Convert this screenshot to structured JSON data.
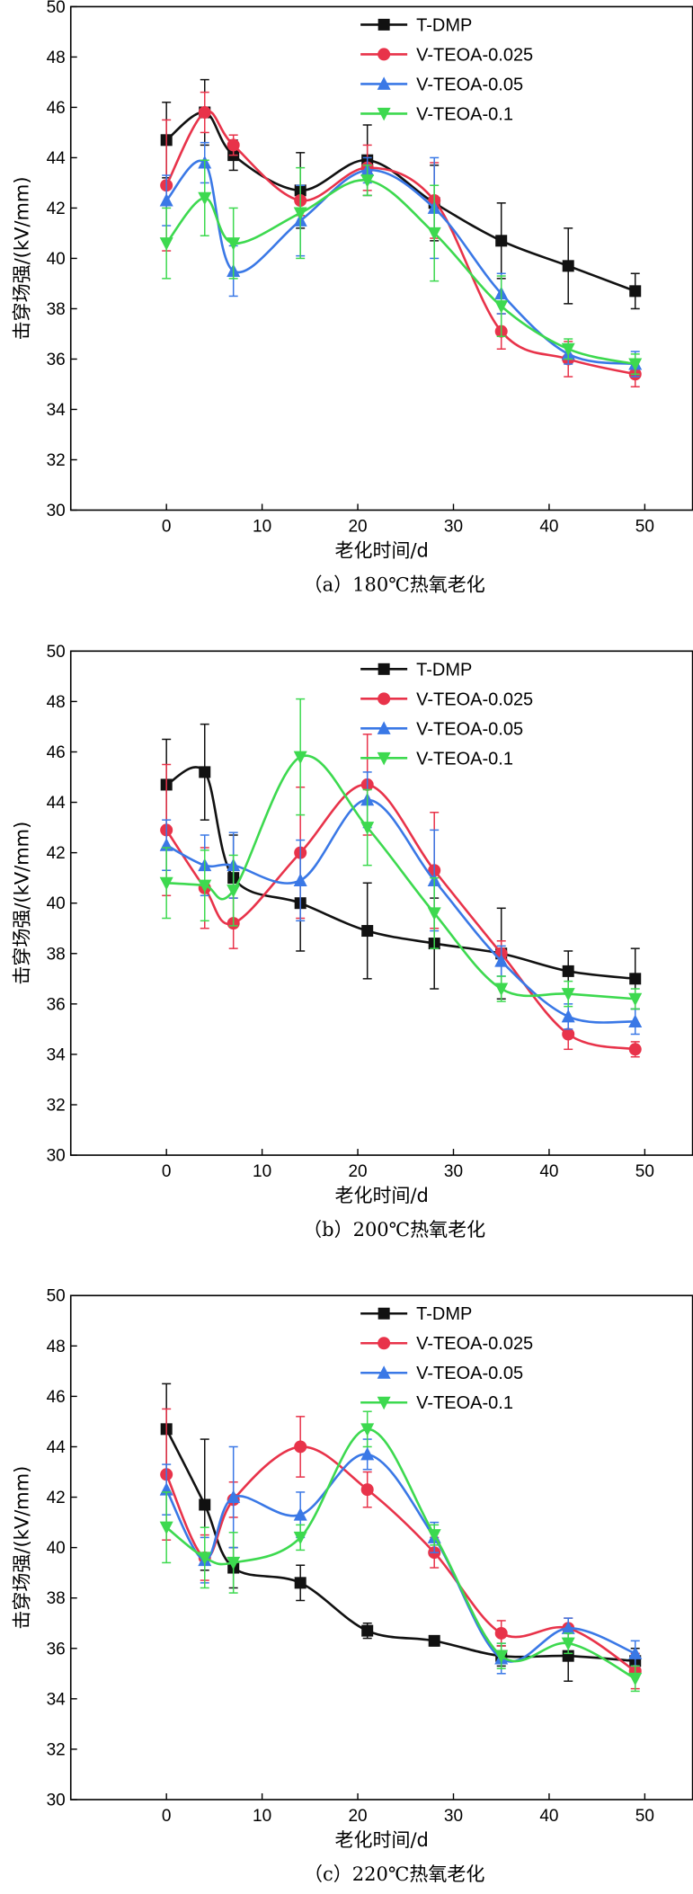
{
  "colors": {
    "T-DMP": "#111111",
    "V-TEOA-0.025": "#e8334a",
    "V-TEOA-0.05": "#3a78e6",
    "V-TEOA-0.1": "#3dd94f"
  },
  "chart_data": [
    {
      "type": "line",
      "caption": "（a）180℃热氧老化",
      "xlabel": "老化时间/d",
      "ylabel": "击穿场强/(kV/mm)",
      "xlim": [
        -10,
        55
      ],
      "ylim": [
        30,
        50
      ],
      "xticks": [
        0,
        10,
        20,
        30,
        40,
        50
      ],
      "yticks": [
        30,
        32,
        34,
        36,
        38,
        40,
        42,
        44,
        46,
        48,
        50
      ],
      "legend_position": "top-right",
      "x": [
        0,
        4,
        7,
        14,
        21,
        28,
        35,
        42,
        49
      ],
      "series": [
        {
          "name": "T-DMP",
          "marker": "square",
          "values": [
            44.7,
            45.8,
            44.1,
            42.7,
            43.9,
            42.2,
            40.7,
            39.7,
            38.7
          ],
          "errors": [
            1.5,
            1.3,
            0.6,
            1.5,
            1.4,
            1.5,
            1.5,
            1.5,
            0.7
          ]
        },
        {
          "name": "V-TEOA-0.025",
          "marker": "circle",
          "values": [
            42.9,
            45.8,
            44.5,
            42.3,
            43.6,
            42.3,
            37.1,
            36.0,
            35.4
          ],
          "errors": [
            2.6,
            0.8,
            0.4,
            0.6,
            0.9,
            1.5,
            0.7,
            0.7,
            0.5
          ]
        },
        {
          "name": "V-TEOA-0.05",
          "marker": "triangle-up",
          "values": [
            42.3,
            43.8,
            39.5,
            41.5,
            43.5,
            42.0,
            38.6,
            36.2,
            35.8
          ],
          "errors": [
            1.0,
            0.8,
            1.0,
            1.4,
            0.5,
            2.0,
            0.8,
            0.4,
            0.5
          ]
        },
        {
          "name": "V-TEOA-0.1",
          "marker": "triangle-down",
          "values": [
            40.6,
            42.4,
            40.6,
            41.8,
            43.1,
            41.0,
            38.1,
            36.4,
            35.8
          ],
          "errors": [
            1.4,
            1.5,
            1.4,
            1.8,
            0.6,
            1.9,
            1.2,
            0.4,
            0.4
          ]
        }
      ]
    },
    {
      "type": "line",
      "caption": "（b）200℃热氧老化",
      "xlabel": "老化时间/d",
      "ylabel": "击穿场强/(kV/mm)",
      "xlim": [
        -10,
        55
      ],
      "ylim": [
        30,
        50
      ],
      "xticks": [
        0,
        10,
        20,
        30,
        40,
        50
      ],
      "yticks": [
        30,
        32,
        34,
        36,
        38,
        40,
        42,
        44,
        46,
        48,
        50
      ],
      "legend_position": "top-right",
      "x": [
        0,
        4,
        7,
        14,
        21,
        28,
        35,
        42,
        49
      ],
      "series": [
        {
          "name": "T-DMP",
          "marker": "square",
          "values": [
            44.7,
            45.2,
            41.0,
            40.0,
            38.9,
            38.4,
            38.0,
            37.3,
            37.0
          ],
          "errors": [
            1.8,
            1.9,
            1.7,
            1.9,
            1.9,
            1.8,
            1.8,
            0.8,
            1.2
          ]
        },
        {
          "name": "V-TEOA-0.025",
          "marker": "circle",
          "values": [
            42.9,
            40.6,
            39.2,
            42.0,
            44.7,
            41.3,
            38.0,
            34.8,
            34.2
          ],
          "errors": [
            2.6,
            1.6,
            1.0,
            2.6,
            2.0,
            2.3,
            0.5,
            0.6,
            0.3
          ]
        },
        {
          "name": "V-TEOA-0.05",
          "marker": "triangle-up",
          "values": [
            42.3,
            41.5,
            41.5,
            40.9,
            44.1,
            40.9,
            37.7,
            35.5,
            35.3
          ],
          "errors": [
            1.0,
            1.2,
            1.3,
            1.6,
            1.1,
            2.0,
            0.6,
            0.5,
            0.5
          ]
        },
        {
          "name": "V-TEOA-0.1",
          "marker": "triangle-down",
          "values": [
            40.8,
            40.7,
            40.5,
            45.8,
            43.0,
            39.6,
            36.6,
            36.4,
            36.2
          ],
          "errors": [
            1.4,
            1.4,
            1.4,
            2.3,
            1.5,
            1.4,
            0.5,
            0.5,
            0.4
          ]
        }
      ]
    },
    {
      "type": "line",
      "caption": "（c）220℃热氧老化",
      "xlabel": "老化时间/d",
      "ylabel": "击穿场强/(kV/mm)",
      "xlim": [
        -10,
        55
      ],
      "ylim": [
        30,
        50
      ],
      "xticks": [
        0,
        10,
        20,
        30,
        40,
        50
      ],
      "yticks": [
        30,
        32,
        34,
        36,
        38,
        40,
        42,
        44,
        46,
        48,
        50
      ],
      "legend_position": "top-right",
      "x": [
        0,
        4,
        7,
        14,
        21,
        28,
        35,
        42,
        49
      ],
      "series": [
        {
          "name": "T-DMP",
          "marker": "square",
          "values": [
            44.7,
            41.7,
            39.2,
            38.6,
            36.7,
            36.3,
            35.7,
            35.7,
            35.5
          ],
          "errors": [
            1.8,
            2.6,
            0.8,
            0.7,
            0.3,
            0.2,
            0.4,
            1.0,
            0.5
          ]
        },
        {
          "name": "V-TEOA-0.025",
          "marker": "circle",
          "values": [
            42.9,
            39.6,
            41.9,
            44.0,
            42.3,
            39.8,
            36.6,
            36.8,
            35.1
          ],
          "errors": [
            2.6,
            0.9,
            0.7,
            1.2,
            0.7,
            0.6,
            0.5,
            0.4,
            0.7
          ]
        },
        {
          "name": "V-TEOA-0.05",
          "marker": "triangle-up",
          "values": [
            42.3,
            39.5,
            42.0,
            41.3,
            43.7,
            40.4,
            35.6,
            36.8,
            35.8
          ],
          "errors": [
            1.0,
            0.9,
            2.0,
            0.9,
            0.6,
            0.6,
            0.6,
            0.4,
            0.5
          ]
        },
        {
          "name": "V-TEOA-0.1",
          "marker": "triangle-down",
          "values": [
            40.8,
            39.6,
            39.4,
            40.4,
            44.7,
            40.5,
            35.7,
            36.2,
            34.8
          ],
          "errors": [
            1.4,
            1.2,
            1.2,
            0.5,
            0.7,
            0.4,
            0.5,
            0.4,
            0.5
          ]
        }
      ]
    }
  ]
}
